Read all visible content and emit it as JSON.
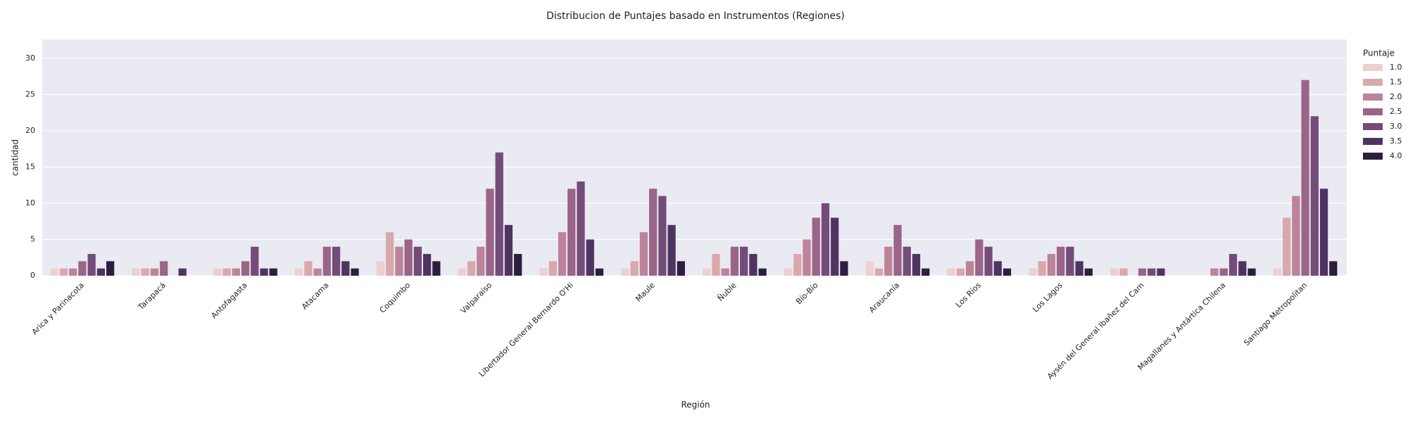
{
  "chart_data": {
    "type": "bar",
    "title": "Distribucion de Puntajes basado en Instrumentos (Regiones)",
    "x_label": "Región",
    "y_label": "cantidad",
    "legend_title": "Puntaje",
    "legend_position": "right",
    "grid": true,
    "categories": [
      "Arica y Parinacota",
      "Tarapacá",
      "Antofagasta",
      "Atacama",
      "Coquimbo",
      "Valparaíso",
      "Libertador General Bernardo O'Hi",
      "Maule",
      "Ñuble",
      "Bío-Bío",
      "Araucanía",
      "Los Ríos",
      "Los Lagos",
      "Aysén del General Ibañez del Cam",
      "Magallanes y Antártica Chilena",
      "Santiago Metropolitan"
    ],
    "series": [
      {
        "name": "1.0",
        "color": "#ebd1cf",
        "values": [
          1,
          1,
          1,
          1,
          2,
          1,
          1,
          1,
          1,
          1,
          2,
          1,
          1,
          1,
          0,
          1
        ]
      },
      {
        "name": "1.5",
        "color": "#d9a8ab",
        "values": [
          1,
          1,
          1,
          2,
          6,
          2,
          2,
          2,
          3,
          3,
          1,
          1,
          2,
          1,
          0,
          8
        ]
      },
      {
        "name": "2.0",
        "color": "#bd8399",
        "values": [
          1,
          1,
          1,
          1,
          4,
          4,
          6,
          6,
          1,
          5,
          4,
          2,
          3,
          0,
          1,
          11
        ]
      },
      {
        "name": "2.5",
        "color": "#9a6589",
        "values": [
          2,
          2,
          2,
          4,
          5,
          12,
          12,
          12,
          4,
          8,
          7,
          5,
          4,
          1,
          1,
          27
        ]
      },
      {
        "name": "3.0",
        "color": "#744c79",
        "values": [
          3,
          0,
          4,
          4,
          4,
          17,
          13,
          11,
          4,
          10,
          4,
          4,
          4,
          1,
          3,
          22
        ]
      },
      {
        "name": "3.5",
        "color": "#4f3462",
        "values": [
          1,
          1,
          1,
          2,
          3,
          7,
          5,
          7,
          3,
          8,
          3,
          2,
          2,
          1,
          2,
          12
        ]
      },
      {
        "name": "4.0",
        "color": "#2d1e3e",
        "values": [
          2,
          0,
          1,
          1,
          2,
          3,
          1,
          2,
          1,
          2,
          1,
          1,
          1,
          0,
          1,
          2
        ]
      }
    ],
    "ylim": [
      0,
      32.6
    ],
    "yticks": [
      0,
      5,
      10,
      15,
      20,
      25,
      30
    ]
  }
}
